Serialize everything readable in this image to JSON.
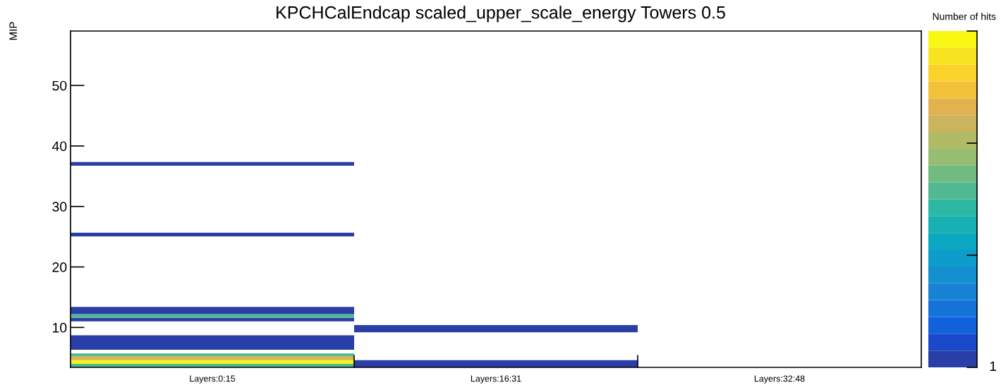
{
  "chart_data": {
    "type": "bar",
    "title": "KPCHCalEndcap scaled_upper_scale_energy Towers 0.5",
    "ylabel": "MIP",
    "clabel": "Number of hits",
    "annotations": [
      "1"
    ],
    "categories": [
      "Layers:0:15",
      "Layers:16:31",
      "Layers:32:48"
    ],
    "ylim": [
      3.4,
      59
    ],
    "yticks": [
      10,
      20,
      30,
      40,
      50
    ],
    "grid": false,
    "legend": false,
    "series": [
      {
        "base": [
          3.4,
          3.4,
          null
        ],
        "values": [
          0.6,
          1.2,
          null
        ],
        "colors": [
          "#50b992",
          "#2a3ea8",
          null
        ]
      },
      {
        "base": [
          4.0,
          9.2,
          null
        ],
        "values": [
          0.6,
          1.2,
          null
        ],
        "colors": [
          "#f7f712",
          "#2a3ea8",
          null
        ]
      },
      {
        "base": [
          4.6,
          null,
          null
        ],
        "values": [
          0.6,
          null,
          null
        ],
        "colors": [
          "#e2b24f",
          null,
          null
        ]
      },
      {
        "base": [
          5.2,
          null,
          null
        ],
        "values": [
          0.5,
          null,
          null
        ],
        "colors": [
          "#50b992",
          null,
          null
        ]
      },
      {
        "base": [
          6.3,
          null,
          null
        ],
        "values": [
          2.4,
          null,
          null
        ],
        "colors": [
          "#2a3ea8",
          null,
          null
        ]
      },
      {
        "base": [
          11.0,
          null,
          null
        ],
        "values": [
          0.6,
          null,
          null
        ],
        "colors": [
          "#2a3ea8",
          null,
          null
        ]
      },
      {
        "base": [
          11.6,
          null,
          null
        ],
        "values": [
          0.6,
          null,
          null
        ],
        "colors": [
          "#50b992",
          null,
          null
        ]
      },
      {
        "base": [
          12.2,
          null,
          null
        ],
        "values": [
          1.2,
          null,
          null
        ],
        "colors": [
          "#2a3ea8",
          null,
          null
        ]
      },
      {
        "base": [
          25.05,
          null,
          null
        ],
        "values": [
          0.6,
          null,
          null
        ],
        "colors": [
          "#2a3ea8",
          null,
          null
        ]
      },
      {
        "base": [
          36.75,
          null,
          null
        ],
        "values": [
          0.6,
          null,
          null
        ],
        "colors": [
          "#2a3ea8",
          null,
          null
        ]
      }
    ]
  }
}
